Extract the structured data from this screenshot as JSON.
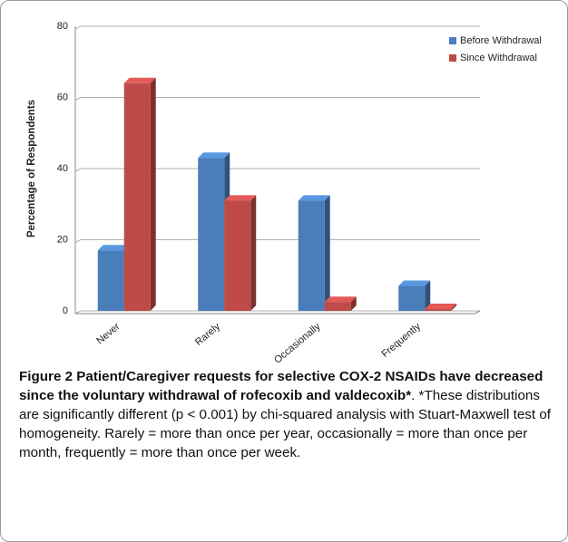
{
  "chart_data": {
    "type": "bar",
    "y_label": "Percentage of Respondents",
    "categories": [
      "Never",
      "Rarely",
      "Occasionally",
      "Frequently"
    ],
    "series": [
      {
        "name": "Before Withdrawal",
        "color": "#4a7ebb",
        "values": [
          17,
          43,
          31,
          7
        ]
      },
      {
        "name": "Since Withdrawal",
        "color": "#be4b48",
        "values": [
          64,
          31,
          2.5,
          0.5
        ]
      }
    ],
    "ylim": [
      0,
      80
    ],
    "yticks": [
      0,
      20,
      40,
      60,
      80
    ],
    "grid": true,
    "legend": "top-right",
    "caption_title": "Figure 2 Patient/Caregiver requests for selective COX-2 NSAIDs have decreased since the voluntary withdrawal of rofecoxib and valdecoxib*",
    "caption_text": ". *These distributions are significantly different (p < 0.001) by chi-squared analysis with Stuart-Maxwell test of homogeneity. Rarely = more than once per year, occasionally = more than once per month, frequently = more than once per week."
  }
}
